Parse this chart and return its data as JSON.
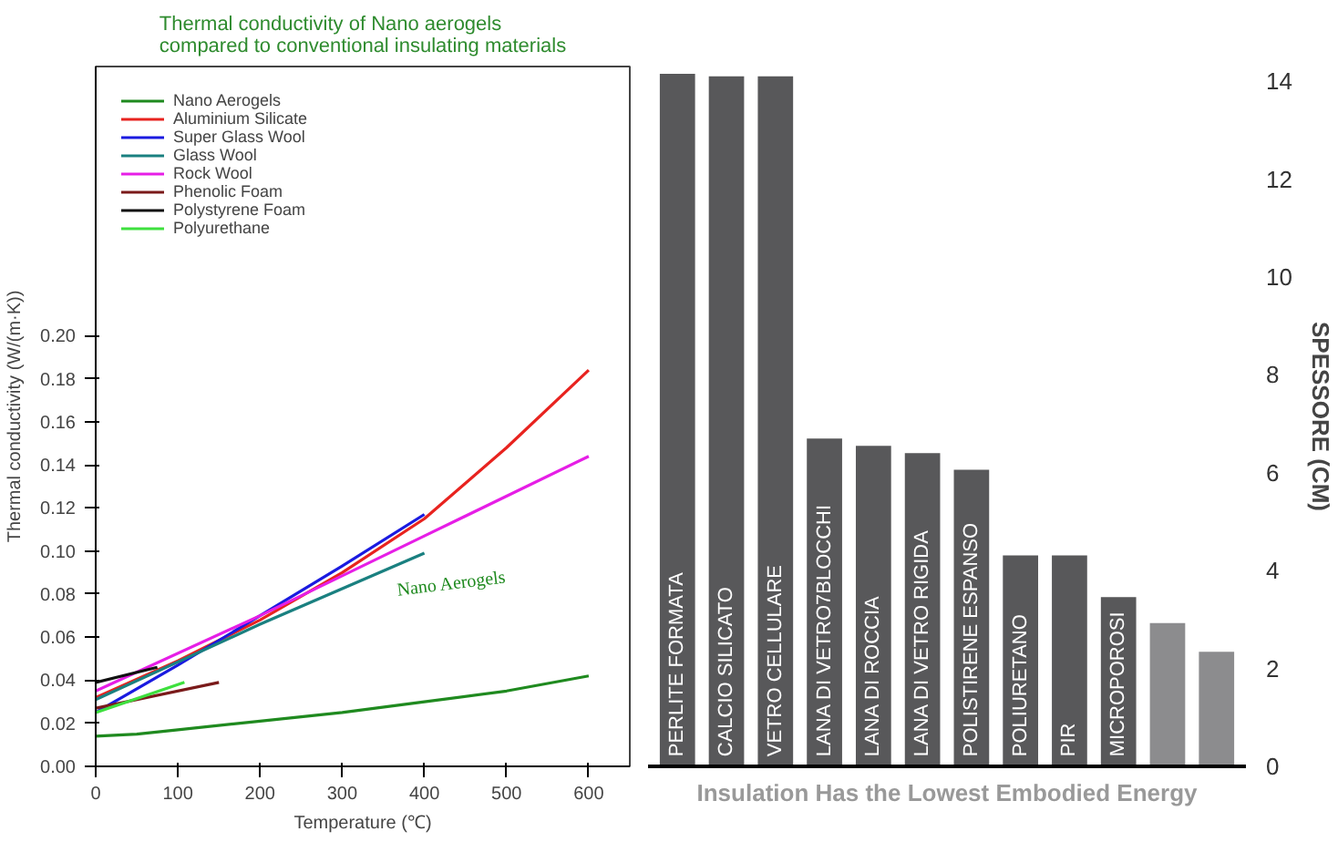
{
  "chart_data": [
    {
      "type": "line",
      "title": "Thermal conductivity of Nano aerogels\ncompared to conventional insulating materials",
      "xlabel": "Temperature (℃)",
      "ylabel": "Thermal conductivity (W/(m·K))",
      "xlim": [
        0,
        650
      ],
      "ylim": [
        0,
        0.325
      ],
      "xticks": [
        0,
        100,
        200,
        300,
        400,
        500,
        600
      ],
      "yticks": [
        {
          "value": 0,
          "label": "0.00"
        },
        {
          "value": 0.02,
          "label": "0.02"
        },
        {
          "value": 0.04,
          "label": "0.04"
        },
        {
          "value": 0.06,
          "label": "0.06"
        },
        {
          "value": 0.08,
          "label": "0.08"
        },
        {
          "value": 0.1,
          "label": "0.10"
        },
        {
          "value": 0.12,
          "label": "0.12"
        },
        {
          "value": 0.14,
          "label": "0.14"
        },
        {
          "value": 0.16,
          "label": "0.16"
        },
        {
          "value": 0.18,
          "label": "0.18"
        },
        {
          "value": 0.2,
          "label": "0.20"
        }
      ],
      "grid": false,
      "legend": "top left",
      "marker": "none",
      "line_style": "solid",
      "annotations": [
        "Nano Aerogels"
      ],
      "series": [
        {
          "name": "Nano Aerogels",
          "color": "#1f8a1f",
          "x": [
            0,
            50,
            100,
            200,
            300,
            400,
            500,
            600
          ],
          "values": [
            0.014,
            0.015,
            0.017,
            0.021,
            0.025,
            0.03,
            0.035,
            0.042
          ]
        },
        {
          "name": "Aluminium Silicate",
          "color": "#e8231f",
          "x": [
            0,
            100,
            200,
            300,
            400,
            500,
            600
          ],
          "values": [
            0.032,
            0.049,
            0.068,
            0.09,
            0.115,
            0.148,
            0.184
          ]
        },
        {
          "name": "Super Glass Wool",
          "color": "#1a1ae0",
          "x": [
            0,
            100,
            200,
            300,
            400
          ],
          "values": [
            0.025,
            0.047,
            0.07,
            0.093,
            0.117
          ]
        },
        {
          "name": "Glass Wool",
          "color": "#1a8080",
          "x": [
            0,
            200,
            400
          ],
          "values": [
            0.031,
            0.066,
            0.099
          ]
        },
        {
          "name": "Rock Wool",
          "color": "#e61ee6",
          "x": [
            0,
            200,
            400,
            600
          ],
          "values": [
            0.035,
            0.07,
            0.107,
            0.144
          ]
        },
        {
          "name": "Phenolic Foam",
          "color": "#7a1a1a",
          "x": [
            0,
            150
          ],
          "values": [
            0.027,
            0.039
          ]
        },
        {
          "name": "Polystyrene Foam",
          "color": "#111111",
          "x": [
            0,
            75
          ],
          "values": [
            0.039,
            0.046
          ]
        },
        {
          "name": "Polyurethane",
          "color": "#3ee03e",
          "x": [
            0,
            108
          ],
          "values": [
            0.025,
            0.039
          ]
        }
      ]
    },
    {
      "type": "bar",
      "ylabel": "SPESSORE (CM)",
      "ylim": [
        0,
        14.3
      ],
      "yticks": [
        0,
        2,
        4,
        6,
        8,
        10,
        12,
        14
      ],
      "grid": false,
      "categories": [
        "PERLITE FORMATA",
        "CALCIO SILICATO",
        "VETRO CELLULARE",
        "LANA DI VETRO7BLOCCHI",
        "LANA DI ROCCIA",
        "LANA DI VETRO RIGIDA",
        "POLISTIRENE ESPANSO",
        "POLIURETANO",
        "PIR",
        "MICROPOROSI",
        null,
        null
      ],
      "values": [
        14.15,
        14.1,
        14.1,
        6.7,
        6.55,
        6.4,
        6.06,
        4.31,
        4.31,
        3.46,
        2.93,
        2.34
      ],
      "colors": [
        "#58585a",
        "#58585a",
        "#58585a",
        "#58585a",
        "#58585a",
        "#58585a",
        "#58585a",
        "#58585a",
        "#58585a",
        "#58585a",
        "#8c8c8e",
        "#8c8c8e"
      ],
      "annotations": [
        "Insulation Has the Lowest Embodied Energy"
      ]
    }
  ]
}
